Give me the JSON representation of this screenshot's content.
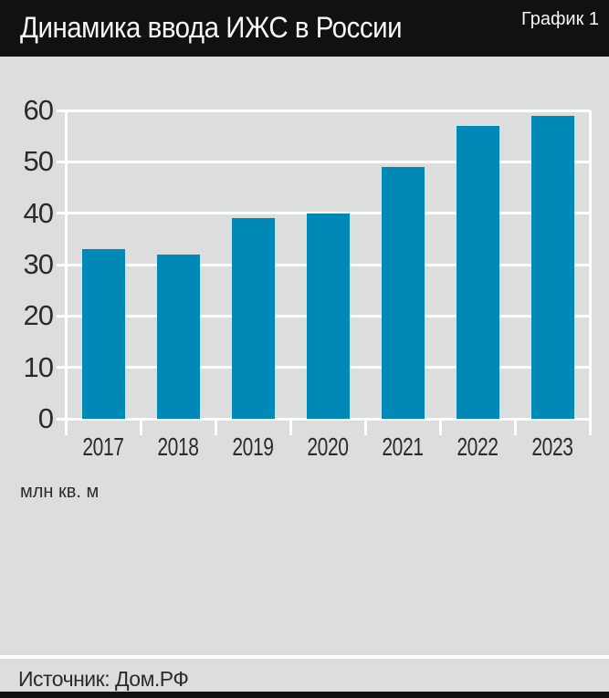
{
  "header": {
    "title": "Динамика ввода ИЖС в России",
    "tag": "График 1"
  },
  "chart_data": {
    "type": "bar",
    "categories": [
      "2017",
      "2018",
      "2019",
      "2020",
      "2021",
      "2022",
      "2023"
    ],
    "values": [
      33,
      32,
      39,
      40,
      49,
      57,
      59
    ],
    "title": "Динамика ввода ИЖС в России",
    "xlabel": "",
    "ylabel": "млн кв. м",
    "ylim": [
      0,
      60
    ],
    "ytick_step": 10,
    "yticks": [
      0,
      10,
      20,
      30,
      40,
      50,
      60
    ],
    "grid": true,
    "legend": "none"
  },
  "footer": {
    "source": "Источник: Дом.РФ"
  },
  "colors": {
    "header_bg": "#111111",
    "body_bg": "#dcdddd",
    "bar": "#0089b7",
    "grid": "#ffffff",
    "text_dark": "#2b2b2b",
    "title_text": "#f7f7f7"
  }
}
